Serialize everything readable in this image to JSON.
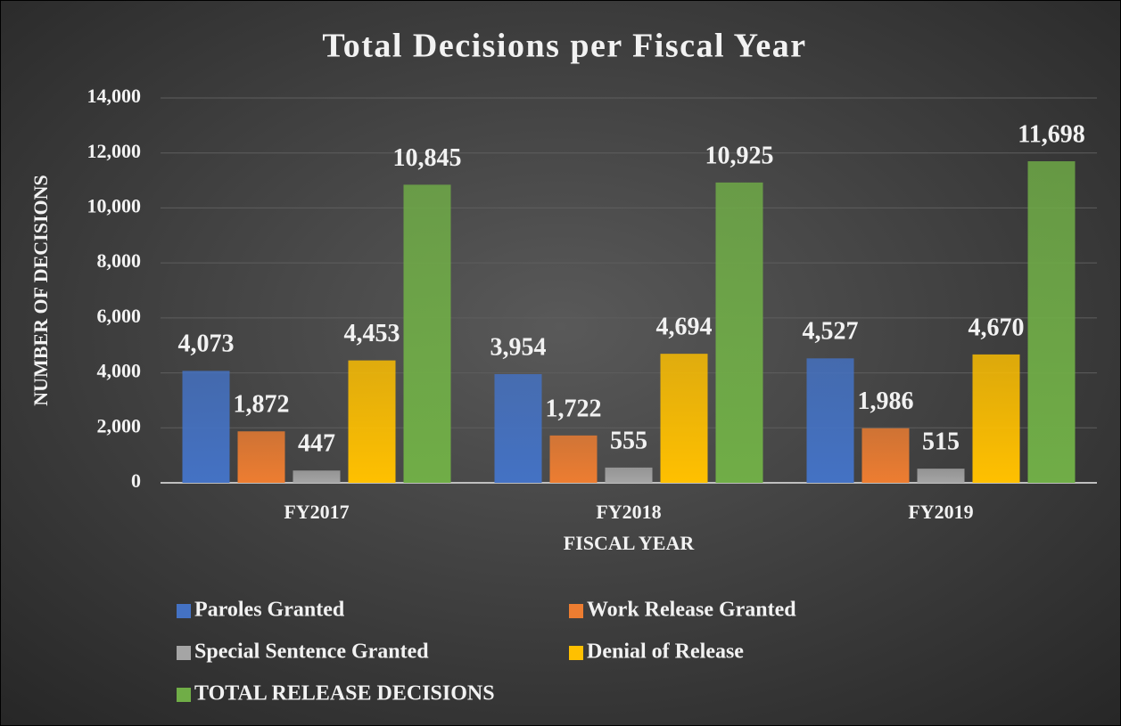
{
  "chart_data": {
    "type": "bar",
    "title": "Total Decisions per Fiscal Year",
    "x_label": "FISCAL YEAR",
    "y_label": "NUMBER OF DECISIONS",
    "categories": [
      "FY2017",
      "FY2018",
      "FY2019"
    ],
    "series": [
      {
        "name": "Paroles Granted",
        "color": "#4472c4",
        "values": [
          4073,
          3954,
          4527
        ],
        "value_labels": [
          "4,073",
          "3,954",
          "4,527"
        ]
      },
      {
        "name": "Work Release Granted",
        "color": "#ed7d31",
        "values": [
          1872,
          1722,
          1986
        ],
        "value_labels": [
          "1,872",
          "1,722",
          "1,986"
        ]
      },
      {
        "name": "Special Sentence Granted",
        "color": "#a5a5a5",
        "values": [
          447,
          555,
          515
        ],
        "value_labels": [
          "447",
          "555",
          "515"
        ]
      },
      {
        "name": "Denial of Release",
        "color": "#ffc000",
        "values": [
          4453,
          4694,
          4670
        ],
        "value_labels": [
          "4,453",
          "4,694",
          "4,670"
        ]
      },
      {
        "name": "TOTAL RELEASE DECISIONS",
        "color": "#70ad47",
        "values": [
          10845,
          10925,
          11698
        ],
        "value_labels": [
          "10,845",
          "10,925",
          "11,698"
        ]
      }
    ],
    "ylim": [
      0,
      14000
    ],
    "yticks": [
      0,
      {
        "value": 2000,
        "label": "2,000"
      },
      {
        "value": 4000,
        "label": "4,000"
      },
      {
        "value": 6000,
        "label": "6,000"
      },
      {
        "value": 8000,
        "label": "8,000"
      },
      {
        "value": 10000,
        "label": "10,000"
      },
      {
        "value": 12000,
        "label": "12,000"
      },
      {
        "value": 14000,
        "label": "14,000"
      }
    ],
    "grid": true,
    "legend": "bottom"
  }
}
